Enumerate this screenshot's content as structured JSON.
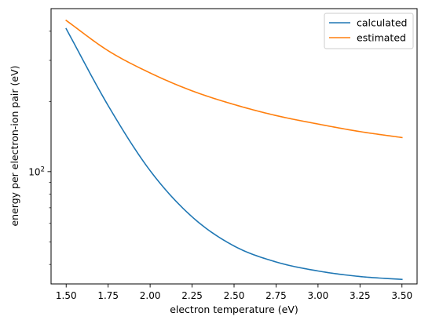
{
  "chart_data": {
    "type": "line",
    "title": "",
    "xlabel": "electron temperature (eV)",
    "ylabel": "energy per electron-ion pair (eV)",
    "xlim": [
      1.41,
      3.59
    ],
    "ylim": [
      33,
      500
    ],
    "yscale": "log",
    "grid": false,
    "legend_position": "top-right",
    "x_ticks": [
      1.5,
      1.75,
      2.0,
      2.25,
      2.5,
      2.75,
      3.0,
      3.25,
      3.5
    ],
    "x_tick_labels": [
      "1.50",
      "1.75",
      "2.00",
      "2.25",
      "2.50",
      "2.75",
      "3.00",
      "3.25",
      "3.50"
    ],
    "y_major_ticks": [
      100
    ],
    "y_minor_ticks": [
      40,
      50,
      60,
      70,
      80,
      90,
      200,
      300,
      400
    ],
    "x": [
      1.5,
      1.75,
      2.0,
      2.25,
      2.5,
      2.75,
      3.0,
      3.25,
      3.5
    ],
    "series": [
      {
        "name": "calculated",
        "color": "#1f77b4",
        "values": [
          410,
          192,
          101,
          64,
          48,
          41,
          37.5,
          35.5,
          34.5
        ]
      },
      {
        "name": "estimated",
        "color": "#ff7f0e",
        "values": [
          445,
          330,
          265,
          222,
          194,
          174,
          160,
          148.5,
          140
        ]
      }
    ]
  }
}
